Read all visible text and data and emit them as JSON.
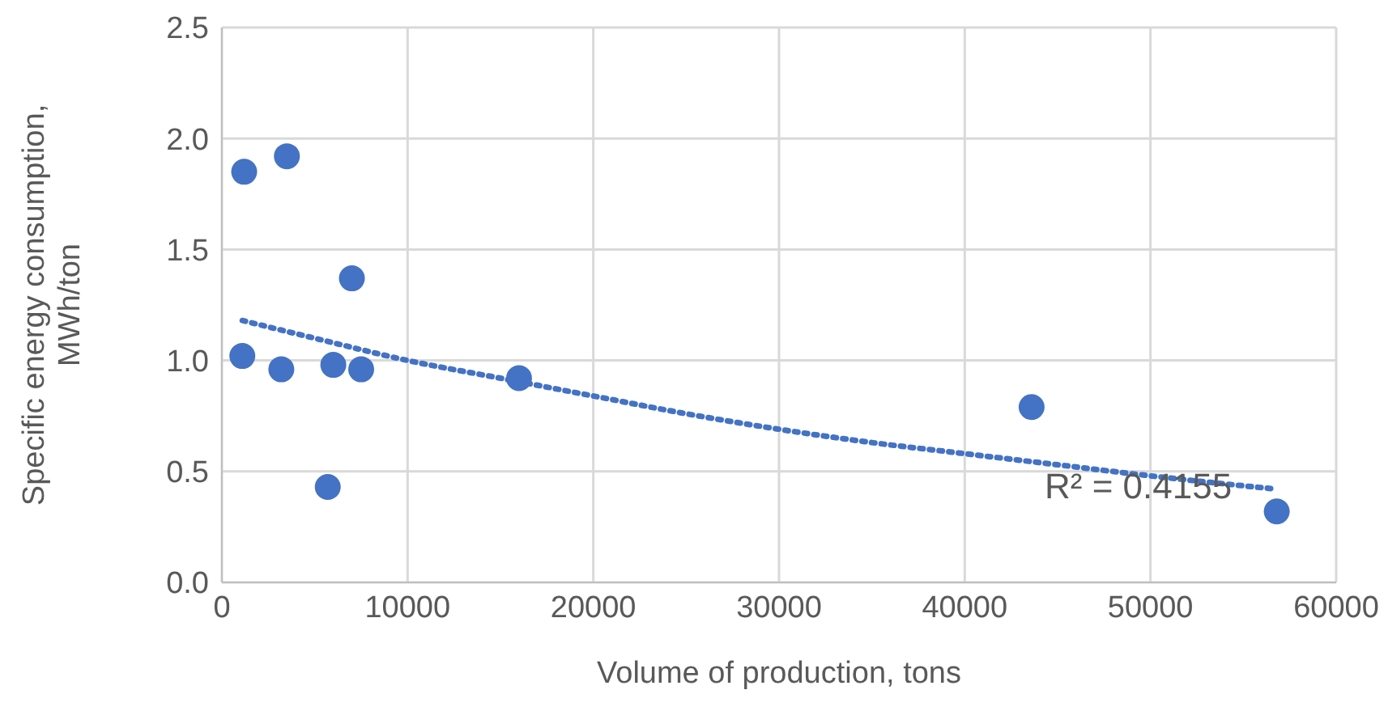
{
  "chart_data": {
    "type": "scatter",
    "xlabel": "Volume of production, tons",
    "ylabel": "Specific energy consumption, MWh/ton",
    "xlim": [
      0,
      60000
    ],
    "xticks": [
      0,
      10000,
      20000,
      30000,
      40000,
      50000,
      60000
    ],
    "ylim": [
      0,
      2.5
    ],
    "yticks": [
      {
        "value": 0,
        "label": "0.0"
      },
      {
        "value": 0.5,
        "label": "0.5"
      },
      {
        "value": 1,
        "label": "1.0"
      },
      {
        "value": 1.5,
        "label": "1.5"
      },
      {
        "value": 2,
        "label": "2.0"
      },
      {
        "value": 2.5,
        "label": "2.5"
      }
    ],
    "grid": true,
    "marker": "circle",
    "series": [
      {
        "color": "#4472c4",
        "x": [
          1200,
          3500,
          1100,
          3200,
          6000,
          7500,
          7000,
          5700,
          16000,
          43600,
          56800
        ],
        "values": [
          1.85,
          1.92,
          1.02,
          0.96,
          0.98,
          0.96,
          1.37,
          0.43,
          0.92,
          0.79,
          0.32
        ]
      },
      {
        "type": "line",
        "color": "#4472c4",
        "marker": "none",
        "line_style": "dotted",
        "x": [
          1100,
          5000,
          10000,
          15000,
          20000,
          25000,
          30000,
          35000,
          40000,
          45000,
          50000,
          56800
        ],
        "values": [
          1.18,
          1.1,
          1.0,
          0.92,
          0.84,
          0.76,
          0.69,
          0.63,
          0.58,
          0.53,
          0.48,
          0.42
        ]
      }
    ],
    "annotations": [
      "R² = 0.4155"
    ]
  }
}
